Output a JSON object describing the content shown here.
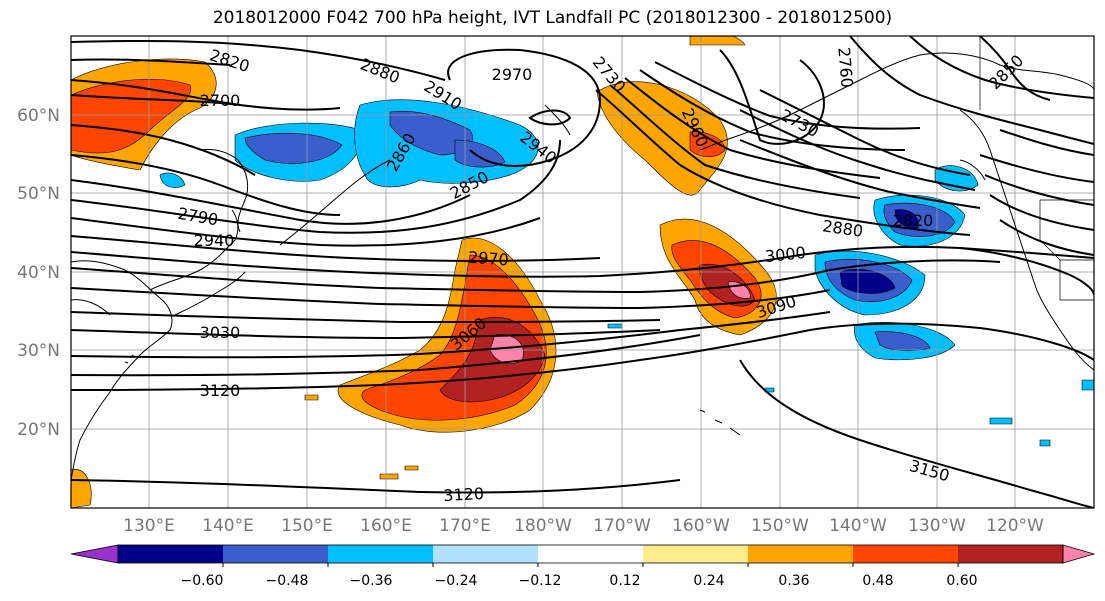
{
  "title": "2018012000 F042 700 hPa height, IVT Landfall PC (2018012300 - 2018012500)",
  "lat_labels": [
    "60°N",
    "50°N",
    "40°N",
    "30°N",
    "20°N"
  ],
  "lon_labels": [
    "130°E",
    "140°E",
    "150°E",
    "160°E",
    "170°E",
    "180°W",
    "170°W",
    "160°W",
    "150°W",
    "140°W",
    "130°W",
    "120°W"
  ],
  "colorbar": {
    "colors": [
      "#9932cc",
      "#00008b",
      "#3a5fcd",
      "#00bfff",
      "#b0e2ff",
      "#ffffff",
      "#ffec8b",
      "#ffa500",
      "#ff4500",
      "#b22222",
      "#ff82ab"
    ],
    "tick_labels": [
      "−0.60",
      "−0.48",
      "−0.36",
      "−0.24",
      "−0.12",
      "0.12",
      "0.24",
      "0.36",
      "0.48",
      "0.60"
    ]
  },
  "contour_labels": [
    "2820",
    "2700",
    "2880",
    "2910",
    "2970",
    "2730",
    "2760",
    "2850",
    "2730",
    "2790",
    "2940",
    "2860",
    "2960",
    "2940",
    "2850",
    "2970",
    "3000",
    "3030",
    "3060",
    "3090",
    "3120",
    "2880",
    "2820",
    "3150",
    "3120"
  ]
}
